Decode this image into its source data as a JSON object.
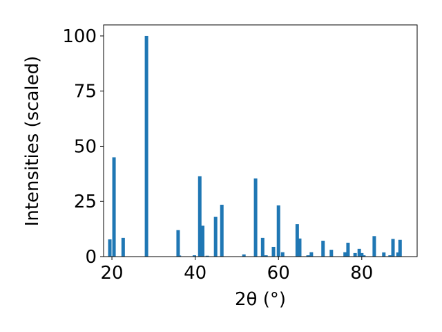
{
  "chart_data": {
    "type": "bar",
    "x_label": "2θ (°)",
    "y_label": "Intensities (scaled)",
    "x": [
      19.5,
      20.5,
      22.7,
      28.3,
      35.9,
      36.2,
      39.8,
      41.1,
      41.8,
      42.9,
      44.9,
      46.4,
      51.7,
      54.5,
      56.2,
      57.0,
      58.8,
      60.0,
      61.0,
      64.5,
      65.1,
      67.1,
      67.9,
      70.7,
      72.7,
      76.0,
      76.7,
      78.4,
      79.4,
      80.0,
      80.5,
      83.0,
      85.3,
      86.8,
      87.5,
      88.7,
      89.2
    ],
    "values": [
      7.8,
      45,
      8.5,
      100,
      12,
      0.5,
      0.6,
      36.4,
      14,
      0.4,
      18,
      23.5,
      1,
      35.4,
      8.5,
      0.6,
      4.4,
      23.2,
      2,
      14.7,
      8.2,
      0.6,
      2,
      7.2,
      3.1,
      2,
      6.3,
      1.6,
      3.5,
      1.6,
      0.6,
      9.3,
      1.9,
      0.6,
      8,
      1.9,
      7.6
    ],
    "color": "#1f77b4",
    "xlim": [
      18.0,
      93.3
    ],
    "xticks": [
      20,
      40,
      60,
      80
    ],
    "ylim": [
      0,
      105
    ],
    "yticks": [
      0,
      25,
      50,
      75,
      100
    ]
  }
}
